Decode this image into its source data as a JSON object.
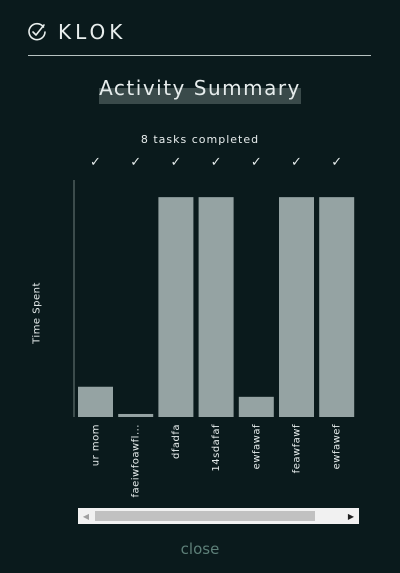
{
  "header": {
    "brand": "KLOK",
    "logo_icon": "clock-check-icon"
  },
  "title": "Activity Summary",
  "subtitle": "8 tasks completed",
  "check_glyph": "✓",
  "colors": {
    "background": "#0a1a1c",
    "bar": "#95a3a3",
    "accent": "#5d7f78"
  },
  "chart_data": {
    "type": "bar",
    "ylabel": "Time Spent",
    "categories": [
      "ur mom",
      "faeiwfoawfl...",
      "dfadfa",
      "14sdafaf",
      "ewfawaf",
      "feawfawf",
      "ewfawef"
    ],
    "values": [
      30,
      3,
      218,
      218,
      20,
      218,
      218
    ],
    "ylim": [
      0,
      235
    ],
    "completed": [
      true,
      true,
      true,
      true,
      true,
      true,
      true
    ]
  },
  "scrollbar": {
    "left_arrow": "◀",
    "right_arrow": "▶"
  },
  "close_label": "close"
}
